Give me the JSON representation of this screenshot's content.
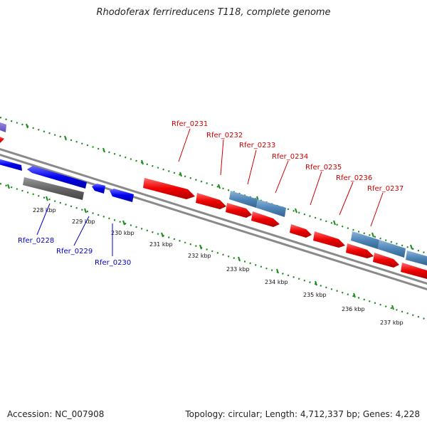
{
  "title": "Rhodoferax ferrireducens T118, complete genome",
  "footer": {
    "accession": "Accession: NC_007908",
    "summary": "Topology: circular; Length: 4,712,337 bp; Genes: 4,228"
  },
  "colors": {
    "forward_gene": "#ff0000",
    "reverse_gene": "#0000ee",
    "forward_label": "#cc0000",
    "reverse_label": "#0000cc",
    "steelblue_feature": "#4f86b8",
    "gray_feature": "#666666",
    "backbone": "#888888",
    "ticks": "#1a8a1a"
  },
  "scale_labels": [
    "228 kbp",
    "229 kbp",
    "230 kbp",
    "231 kbp",
    "232 kbp",
    "233 kbp",
    "234 kbp",
    "235 kbp",
    "236 kbp",
    "237 kbp"
  ],
  "forward_gene_labels": [
    "Rfer_0231",
    "Rfer_0232",
    "Rfer_0233",
    "Rfer_0234",
    "Rfer_0235",
    "Rfer_0236",
    "Rfer_0237"
  ],
  "reverse_gene_labels": [
    "Rfer_0228",
    "Rfer_0229",
    "Rfer_0230"
  ]
}
